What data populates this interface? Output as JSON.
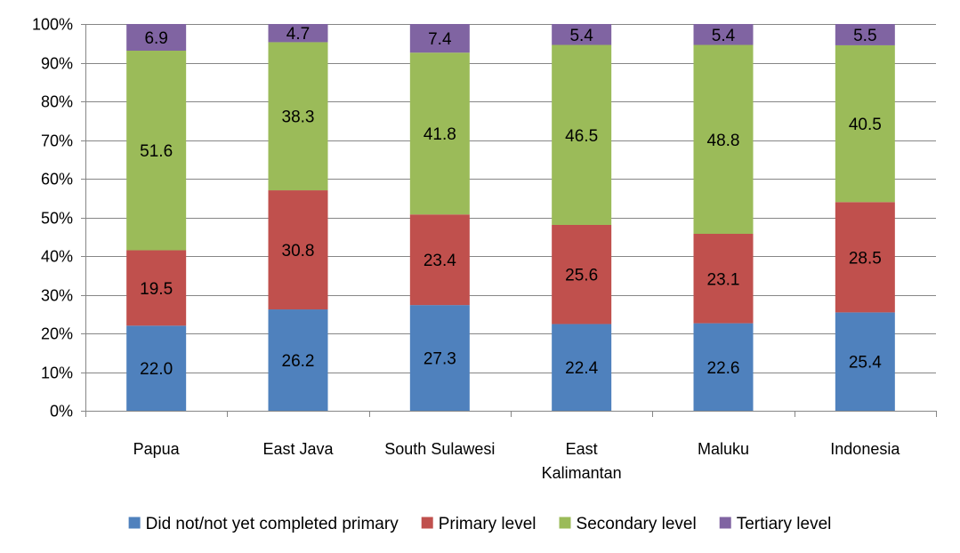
{
  "chart_data": {
    "type": "bar",
    "stacked": true,
    "percent_stacked": true,
    "title": "",
    "xlabel": "",
    "ylabel": "",
    "ylim": [
      0,
      100
    ],
    "yticks": [
      "0%",
      "10%",
      "20%",
      "30%",
      "40%",
      "50%",
      "60%",
      "70%",
      "80%",
      "90%",
      "100%"
    ],
    "grid": true,
    "legend_position": "bottom",
    "categories": [
      [
        "Papua"
      ],
      [
        "East Java"
      ],
      [
        "South Sulawesi"
      ],
      [
        "East",
        "Kalimantan"
      ],
      [
        "Maluku"
      ],
      [
        "Indonesia"
      ]
    ],
    "series": [
      {
        "name": "Did not/not yet completed primary",
        "color": "#4F81BD",
        "values": [
          22.0,
          26.2,
          27.3,
          22.4,
          22.6,
          25.4
        ],
        "labels": [
          "22.0",
          "26.2",
          "27.3",
          "22.4",
          "22.6",
          "25.4"
        ]
      },
      {
        "name": "Primary level",
        "color": "#C0504D",
        "values": [
          19.5,
          30.8,
          23.4,
          25.6,
          23.1,
          28.5
        ],
        "labels": [
          "19.5",
          "30.8",
          "23.4",
          "25.6",
          "23.1",
          "28.5"
        ]
      },
      {
        "name": "Secondary level",
        "color": "#9BBB59",
        "values": [
          51.6,
          38.3,
          41.8,
          46.5,
          48.8,
          40.5
        ],
        "labels": [
          "51.6",
          "38.3",
          "41.8",
          "46.5",
          "48.8",
          "40.5"
        ]
      },
      {
        "name": "Tertiary level",
        "color": "#8064A2",
        "values": [
          6.9,
          4.7,
          7.4,
          5.4,
          5.4,
          5.5
        ],
        "labels": [
          "6.9",
          "4.7",
          "7.4",
          "5.4",
          "5.4",
          "5.5"
        ]
      }
    ]
  }
}
